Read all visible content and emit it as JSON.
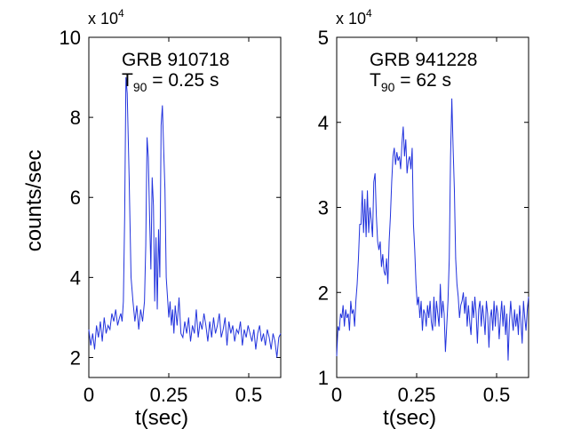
{
  "chart_data": [
    {
      "type": "line",
      "annotation_title": "GRB 910718",
      "annotation_t90": {
        "prefix": "T",
        "sub": "90",
        "suffix": " = 0.25 s"
      },
      "xlabel": "t(sec)",
      "ylabel": "counts/sec",
      "exponent_label": {
        "base": "x 10",
        "exp": "4"
      },
      "xlim": [
        0,
        0.6
      ],
      "ylim": [
        1.5,
        10
      ],
      "xticks": [
        0,
        0.25,
        0.5
      ],
      "xtick_labels": [
        "0",
        "0.25",
        "0.5"
      ],
      "yticks": [
        2,
        4,
        6,
        8,
        10
      ],
      "ytick_labels": [
        "2",
        "4",
        "6",
        "8",
        "10"
      ],
      "line_color": "#2233dd",
      "series": [
        {
          "x": [
            0.0,
            0.006,
            0.012,
            0.018,
            0.024,
            0.03,
            0.036,
            0.042,
            0.048,
            0.054,
            0.06,
            0.066,
            0.072,
            0.078,
            0.084,
            0.09,
            0.096,
            0.1,
            0.104,
            0.108,
            0.112,
            0.116,
            0.12,
            0.126,
            0.132,
            0.138,
            0.144,
            0.15,
            0.156,
            0.162,
            0.168,
            0.174,
            0.178,
            0.182,
            0.186,
            0.19,
            0.194,
            0.198,
            0.202,
            0.206,
            0.21,
            0.214,
            0.218,
            0.222,
            0.226,
            0.23,
            0.234,
            0.238,
            0.242,
            0.246,
            0.25,
            0.254,
            0.258,
            0.262,
            0.266,
            0.27,
            0.276,
            0.282,
            0.288,
            0.294,
            0.3,
            0.306,
            0.312,
            0.318,
            0.324,
            0.33,
            0.336,
            0.342,
            0.348,
            0.354,
            0.36,
            0.366,
            0.372,
            0.378,
            0.384,
            0.39,
            0.396,
            0.402,
            0.408,
            0.414,
            0.42,
            0.426,
            0.432,
            0.438,
            0.444,
            0.45,
            0.456,
            0.462,
            0.468,
            0.474,
            0.48,
            0.486,
            0.492,
            0.498,
            0.504,
            0.51,
            0.516,
            0.522,
            0.528,
            0.534,
            0.54,
            0.546,
            0.552,
            0.558,
            0.564,
            0.57,
            0.576,
            0.582,
            0.588,
            0.594,
            0.6
          ],
          "y": [
            2.7,
            2.3,
            2.6,
            2.2,
            2.8,
            2.5,
            2.9,
            2.4,
            3.0,
            2.6,
            2.8,
            2.7,
            3.1,
            2.9,
            3.2,
            2.8,
            3.0,
            3.1,
            2.9,
            3.4,
            5.5,
            9.0,
            8.6,
            6.5,
            4.0,
            3.4,
            2.9,
            3.3,
            2.7,
            3.2,
            2.9,
            3.4,
            4.8,
            7.5,
            7.0,
            5.5,
            4.2,
            6.5,
            5.8,
            3.4,
            5.0,
            3.2,
            5.2,
            4.0,
            7.8,
            8.3,
            7.2,
            6.2,
            4.0,
            3.5,
            3.0,
            3.4,
            2.8,
            3.2,
            2.6,
            3.3,
            2.8,
            3.5,
            2.6,
            2.5,
            2.9,
            2.6,
            3.0,
            2.4,
            2.8,
            2.6,
            3.2,
            2.5,
            2.9,
            2.7,
            3.1,
            2.8,
            2.4,
            2.9,
            2.5,
            3.0,
            2.6,
            2.8,
            3.1,
            2.5,
            2.7,
            3.0,
            2.3,
            2.9,
            2.6,
            2.8,
            2.4,
            2.7,
            2.6,
            2.9,
            2.3,
            2.7,
            2.5,
            2.8,
            2.6,
            2.4,
            2.7,
            2.2,
            2.6,
            2.8,
            2.4,
            2.6,
            2.3,
            2.7,
            2.5,
            2.2,
            2.6,
            2.4,
            2.0,
            2.5,
            2.6
          ]
        }
      ]
    },
    {
      "type": "line",
      "annotation_title": "GRB 941228",
      "annotation_t90": {
        "prefix": "T",
        "sub": "90",
        "suffix": " = 62 s"
      },
      "xlabel": "t(sec)",
      "ylabel": "",
      "exponent_label": {
        "base": "x 10",
        "exp": "4"
      },
      "xlim": [
        0,
        0.6
      ],
      "ylim": [
        1,
        5
      ],
      "xticks": [
        0,
        0.25,
        0.5
      ],
      "xtick_labels": [
        "0",
        "0.25",
        "0.5"
      ],
      "yticks": [
        1,
        2,
        3,
        4,
        5
      ],
      "ytick_labels": [
        "1",
        "2",
        "3",
        "4",
        "5"
      ],
      "line_color": "#2233dd",
      "series": [
        {
          "x": [
            0.0,
            0.004,
            0.008,
            0.012,
            0.016,
            0.02,
            0.024,
            0.028,
            0.032,
            0.036,
            0.04,
            0.044,
            0.048,
            0.052,
            0.056,
            0.06,
            0.064,
            0.068,
            0.072,
            0.076,
            0.08,
            0.084,
            0.088,
            0.092,
            0.096,
            0.1,
            0.104,
            0.108,
            0.112,
            0.116,
            0.12,
            0.124,
            0.128,
            0.132,
            0.136,
            0.14,
            0.144,
            0.148,
            0.152,
            0.156,
            0.16,
            0.164,
            0.168,
            0.172,
            0.176,
            0.18,
            0.184,
            0.188,
            0.192,
            0.196,
            0.2,
            0.204,
            0.208,
            0.212,
            0.216,
            0.22,
            0.224,
            0.228,
            0.232,
            0.236,
            0.24,
            0.244,
            0.248,
            0.252,
            0.256,
            0.26,
            0.264,
            0.268,
            0.272,
            0.276,
            0.28,
            0.284,
            0.288,
            0.292,
            0.296,
            0.3,
            0.304,
            0.308,
            0.312,
            0.316,
            0.32,
            0.324,
            0.328,
            0.332,
            0.336,
            0.34,
            0.344,
            0.348,
            0.352,
            0.356,
            0.36,
            0.364,
            0.368,
            0.372,
            0.376,
            0.38,
            0.384,
            0.388,
            0.392,
            0.396,
            0.4,
            0.404,
            0.408,
            0.412,
            0.416,
            0.42,
            0.424,
            0.428,
            0.432,
            0.436,
            0.44,
            0.444,
            0.448,
            0.452,
            0.456,
            0.46,
            0.464,
            0.468,
            0.472,
            0.476,
            0.48,
            0.484,
            0.488,
            0.492,
            0.496,
            0.5,
            0.504,
            0.508,
            0.512,
            0.516,
            0.52,
            0.524,
            0.528,
            0.532,
            0.536,
            0.54,
            0.544,
            0.548,
            0.552,
            0.556,
            0.56,
            0.564,
            0.568,
            0.572,
            0.576,
            0.58,
            0.584,
            0.588,
            0.592,
            0.596,
            0.6
          ],
          "y": [
            1.25,
            1.6,
            1.55,
            1.75,
            1.7,
            1.85,
            1.6,
            1.8,
            1.7,
            1.75,
            1.55,
            1.9,
            1.75,
            1.8,
            1.6,
            1.9,
            2.1,
            2.4,
            2.8,
            2.8,
            3.2,
            2.7,
            3.1,
            2.65,
            3.2,
            2.7,
            3.0,
            2.85,
            2.65,
            3.3,
            3.4,
            2.9,
            2.6,
            2.5,
            2.6,
            2.3,
            2.45,
            2.25,
            2.2,
            2.4,
            2.1,
            2.6,
            2.9,
            3.3,
            3.6,
            3.7,
            3.5,
            3.65,
            3.55,
            3.6,
            3.45,
            3.75,
            3.95,
            3.6,
            3.8,
            3.4,
            3.55,
            3.6,
            3.45,
            3.7,
            2.8,
            2.5,
            2.1,
            1.85,
            1.95,
            1.7,
            1.9,
            1.55,
            1.8,
            1.75,
            1.6,
            1.85,
            1.7,
            1.9,
            1.65,
            1.55,
            1.95,
            1.6,
            1.9,
            1.75,
            1.6,
            2.1,
            1.7,
            1.9,
            1.75,
            1.3,
            1.6,
            1.9,
            2.4,
            3.6,
            4.28,
            3.7,
            3.2,
            2.4,
            2.1,
            1.95,
            1.7,
            1.85,
            1.9,
            2.0,
            1.75,
            1.95,
            1.6,
            1.85,
            1.65,
            1.5,
            1.9,
            1.7,
            1.95,
            1.75,
            1.4,
            1.8,
            1.9,
            1.6,
            1.85,
            1.7,
            1.5,
            1.9,
            1.75,
            1.35,
            1.7,
            1.8,
            1.55,
            1.9,
            1.6,
            1.85,
            1.75,
            1.45,
            1.7,
            1.9,
            1.6,
            1.85,
            1.5,
            1.75,
            1.2,
            1.65,
            1.9,
            1.7,
            1.55,
            1.8,
            1.6,
            1.75,
            1.5,
            1.85,
            1.65,
            1.4,
            1.9,
            1.7,
            1.55,
            1.8,
            1.95
          ]
        }
      ]
    }
  ]
}
